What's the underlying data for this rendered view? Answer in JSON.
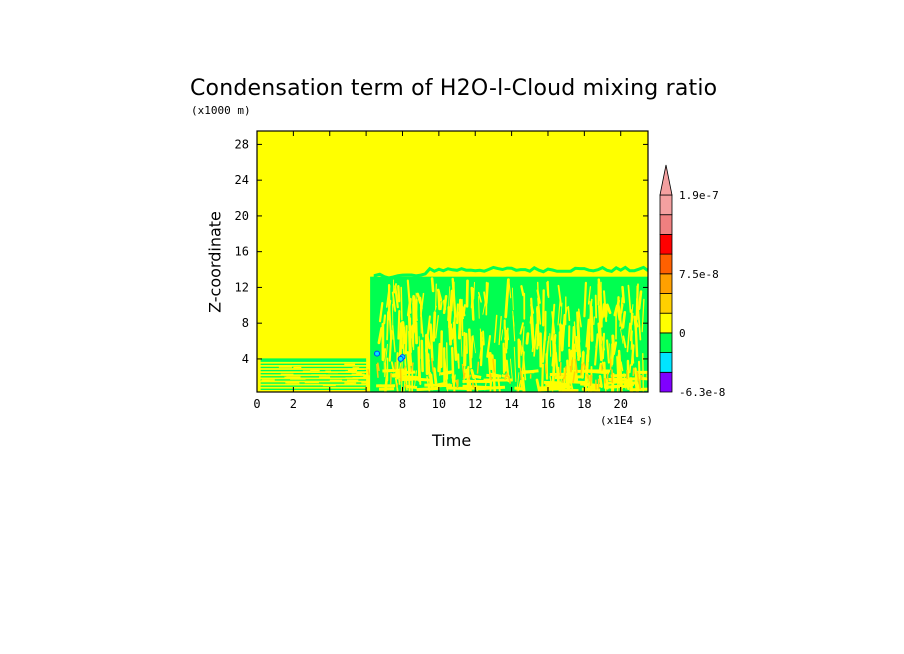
{
  "chart_data": {
    "type": "heatmap",
    "title": "Condensation term of H2O-l-Cloud mixing ratio",
    "xlabel": "Time",
    "ylabel": "Z-coordinate",
    "x_unit": "(x1E4 s)",
    "y_unit": "(x1000 m)",
    "xlim": [
      0,
      21.5
    ],
    "ylim": [
      0.3,
      29.5
    ],
    "x_ticks": [
      0,
      2,
      4,
      6,
      8,
      10,
      12,
      14,
      16,
      18,
      20
    ],
    "y_ticks": [
      4,
      8,
      12,
      16,
      20,
      24,
      28
    ],
    "background_value": "0 to 2.5e-8 (yellow)",
    "features": [
      {
        "description": "shallow cloud layer",
        "x_range": [
          0.2,
          6.0
        ],
        "z_range": [
          0.3,
          3.9
        ]
      },
      {
        "description": "deep cloud layer",
        "x_range": [
          6.0,
          21.5
        ],
        "z_range": [
          0.3,
          14.3
        ]
      }
    ],
    "colorbar": {
      "labels": [
        "1.9e-7",
        "7.5e-8",
        "0",
        "-6.3e-8"
      ],
      "colors": [
        "#8000ff",
        "#00e5ff",
        "#00ff50",
        "#ffff00",
        "#ffd000",
        "#ffa000",
        "#ff6000",
        "#ff0000",
        "#f08080",
        "#f4a0a0"
      ],
      "extend": "max"
    },
    "colors": {
      "zero_band": "#ffff00",
      "negative_band": "#00ff50",
      "positive_band": "#ffd000"
    }
  }
}
